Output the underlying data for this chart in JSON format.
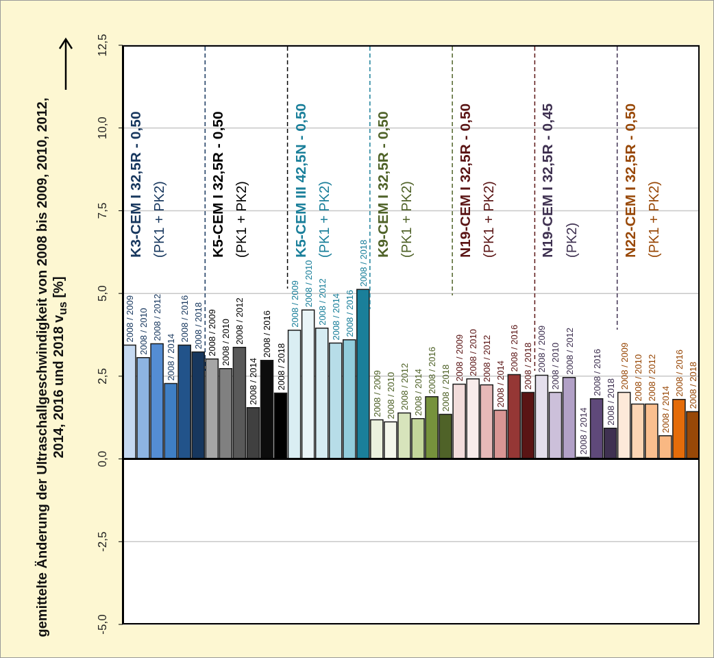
{
  "chart_data": {
    "type": "bar",
    "ylabel": "gemittelte Änderung der Ultraschallgeschwindigkeit von 2008 bis 2009, 2010, 2012, 2014, 2016 und 2018 v$_{us}$ [%]",
    "categories": [
      "2008 / 2009",
      "2008 / 2010",
      "2008 / 2012",
      "2008 / 2014",
      "2008 / 2016",
      "2008 / 2018",
      "2008 / 2009",
      "2008 / 2010",
      "2008 / 2012",
      "2008 / 2014",
      "2008 / 2016",
      "2008 / 2018",
      "2008 / 2009",
      "2008 / 2010",
      "2008 / 2012",
      "2008 / 2014",
      "2008 / 2016",
      "2008 / 2018",
      "2008 / 2009",
      "2008 / 2010",
      "2008 / 2012",
      "2008 / 2014",
      "2008 / 2016",
      "2008 / 2018",
      "2008 / 2009",
      "2008 / 2010",
      "2008 / 2012",
      "2008 / 2014",
      "2008 / 2016",
      "2008 / 2018",
      "2008 / 2009",
      "2008 / 2010",
      "2008 / 2012",
      "2008 / 2014",
      "2008 / 2016",
      "2008 / 2018",
      "2008 / 2009",
      "2008 / 2010",
      "2008 / 2012",
      "2008 / 2014",
      "2008 / 2016",
      "2008 / 2018"
    ],
    "values": [
      3.44,
      3.06,
      3.48,
      2.28,
      3.44,
      3.23,
      3.02,
      2.73,
      3.37,
      1.55,
      2.98,
      1.99,
      3.89,
      4.5,
      3.95,
      3.5,
      3.6,
      5.12,
      1.18,
      1.12,
      1.39,
      1.22,
      1.88,
      1.35,
      2.26,
      2.42,
      2.24,
      1.47,
      2.55,
      2.01,
      2.53,
      2.01,
      2.46,
      0.05,
      1.82,
      0.93,
      2.01,
      1.66,
      1.66,
      0.7,
      1.8,
      1.43
    ],
    "colors": [
      "#c5d9f1",
      "#8db4e2",
      "#548dd4",
      "#3f7fc4",
      "#22538a",
      "#17375e",
      "#a6a6a6",
      "#808080",
      "#595959",
      "#404040",
      "#0d0d0d",
      "#000000",
      "#daeef3",
      "#eaf5f8",
      "#d6ecf2",
      "#b7dde8",
      "#92cddc",
      "#1a7f9a",
      "#ebf1de",
      "#f4f7ec",
      "#d7e4bc",
      "#c3d69b",
      "#76923c",
      "#4f6228",
      "#f2dcdb",
      "#f8eceb",
      "#e6b9b8",
      "#d99694",
      "#953735",
      "#5a1414",
      "#e4dfec",
      "#ccc0da",
      "#b2a1c7",
      "#ffffff",
      "#5f497a",
      "#3f3151",
      "#fde9d9",
      "#fcd5b4",
      "#fabf8f",
      "#f9b883",
      "#e46c0a",
      "#984807"
    ],
    "annotations": [
      "K3-CEM I 32,5R - 0,50",
      "(PK1 + PK2)",
      "K5-CEM I 32,5R - 0,50",
      "(PK1 + PK2)",
      "K5-CEM III  42,5N - 0,50",
      "(PK1 + PK2)",
      "K9-CEM I 32,5R - 0,50",
      "(PK1 + PK2)",
      "N19-CEM I 32,5R - 0,50",
      "(PK1 + PK2)",
      "N19-CEM I 32,5R - 0,45",
      "(PK2)",
      "N22-CEM I 32,5R - 0,50",
      "(PK1 + PK2)"
    ],
    "ylim": [
      -5,
      12.5
    ],
    "yticks": [
      {
        "value": -5,
        "label": "-5,0"
      },
      {
        "value": -2.5,
        "label": "-2,5"
      },
      {
        "value": 0,
        "label": "0,0"
      },
      {
        "value": 2.5,
        "label": "2,5"
      },
      {
        "value": 5,
        "label": "5,0"
      },
      {
        "value": 7.5,
        "label": "7,5"
      },
      {
        "value": 10,
        "label": "10,0"
      },
      {
        "value": 12.5,
        "label": "12,5"
      }
    ],
    "grid": "y"
  }
}
